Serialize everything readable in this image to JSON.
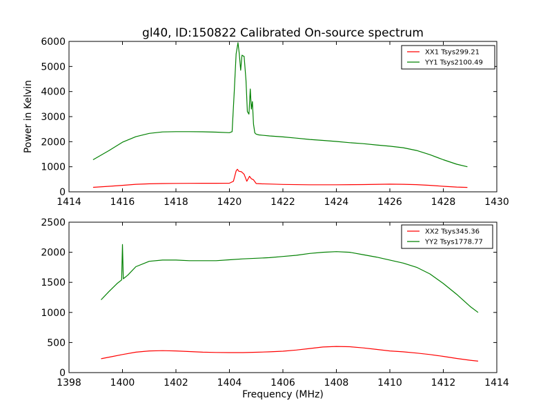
{
  "figure": {
    "title": "gl40, ID:150822 Calibrated On-source spectrum"
  },
  "chart_data": [
    {
      "type": "line",
      "title": "gl40, ID:150822 Calibrated On-source spectrum",
      "xlabel": "",
      "ylabel": "Power in Kelvin",
      "xlim": [
        1414,
        1430
      ],
      "ylim": [
        0,
        6000
      ],
      "xticks": [
        1414,
        1416,
        1418,
        1420,
        1422,
        1424,
        1426,
        1428,
        1430
      ],
      "yticks": [
        0,
        1000,
        2000,
        3000,
        4000,
        5000,
        6000
      ],
      "legend_position": "top-right",
      "grid": false,
      "series": [
        {
          "name": "XX1 Tsys299.21",
          "color": "#ff0000",
          "x": [
            1414.9,
            1415.5,
            1416.0,
            1416.5,
            1417.0,
            1417.5,
            1418.0,
            1418.5,
            1419.0,
            1419.5,
            1420.0,
            1420.15,
            1420.25,
            1420.3,
            1420.35,
            1420.45,
            1420.55,
            1420.65,
            1420.75,
            1420.82,
            1420.9,
            1421.0,
            1421.2,
            1421.5,
            1422.0,
            1423.0,
            1424.0,
            1425.0,
            1426.0,
            1426.5,
            1427.0,
            1427.5,
            1428.0,
            1428.5,
            1428.9
          ],
          "values": [
            180,
            220,
            260,
            300,
            320,
            330,
            335,
            338,
            340,
            340,
            345,
            420,
            830,
            900,
            820,
            800,
            700,
            420,
            620,
            520,
            480,
            330,
            320,
            310,
            295,
            280,
            280,
            290,
            305,
            300,
            285,
            260,
            220,
            190,
            175
          ]
        },
        {
          "name": "YY1 Tsys2100.49",
          "color": "#008000",
          "x": [
            1414.9,
            1415.5,
            1416.0,
            1416.5,
            1417.0,
            1417.5,
            1418.0,
            1418.5,
            1419.0,
            1419.5,
            1420.0,
            1420.1,
            1420.18,
            1420.25,
            1420.32,
            1420.37,
            1420.42,
            1420.47,
            1420.55,
            1420.62,
            1420.67,
            1420.73,
            1420.78,
            1420.82,
            1420.86,
            1420.9,
            1420.95,
            1421.0,
            1421.1,
            1421.5,
            1422.0,
            1422.5,
            1423.0,
            1423.5,
            1424.0,
            1424.5,
            1425.0,
            1425.5,
            1426.0,
            1426.5,
            1427.0,
            1427.5,
            1428.0,
            1428.5,
            1428.9
          ],
          "values": [
            1280,
            1650,
            1980,
            2200,
            2330,
            2390,
            2400,
            2400,
            2395,
            2380,
            2360,
            2400,
            4000,
            5500,
            5950,
            5500,
            4850,
            5450,
            5400,
            4450,
            3200,
            3100,
            4100,
            3300,
            3600,
            2700,
            2350,
            2300,
            2270,
            2230,
            2190,
            2140,
            2090,
            2050,
            2010,
            1960,
            1920,
            1870,
            1820,
            1760,
            1650,
            1480,
            1280,
            1100,
            1000
          ]
        }
      ]
    },
    {
      "type": "line",
      "title": "",
      "xlabel": "Frequency (MHz)",
      "ylabel": "",
      "xlim": [
        1398,
        1414
      ],
      "ylim": [
        0,
        2500
      ],
      "xticks": [
        1398,
        1400,
        1402,
        1404,
        1406,
        1408,
        1410,
        1412,
        1414
      ],
      "yticks": [
        0,
        500,
        1000,
        1500,
        2000,
        2500
      ],
      "legend_position": "top-right",
      "grid": false,
      "series": [
        {
          "name": "XX2 Tsys345.36",
          "color": "#ff0000",
          "x": [
            1399.2,
            1399.6,
            1400.0,
            1400.5,
            1401.0,
            1401.5,
            1402.0,
            1402.5,
            1403.0,
            1403.5,
            1404.0,
            1404.5,
            1405.0,
            1405.5,
            1406.0,
            1406.5,
            1407.0,
            1407.5,
            1408.0,
            1408.5,
            1409.0,
            1409.5,
            1410.0,
            1410.5,
            1411.0,
            1411.5,
            1412.0,
            1412.5,
            1413.0,
            1413.3
          ],
          "values": [
            230,
            265,
            300,
            340,
            360,
            365,
            360,
            350,
            340,
            335,
            332,
            333,
            338,
            345,
            355,
            375,
            400,
            425,
            435,
            430,
            410,
            385,
            360,
            345,
            325,
            300,
            270,
            235,
            205,
            190
          ]
        },
        {
          "name": "YY2 Tsys1778.77",
          "color": "#008000",
          "x": [
            1399.2,
            1399.5,
            1399.8,
            1399.97,
            1400.0,
            1400.03,
            1400.2,
            1400.5,
            1401.0,
            1401.5,
            1402.0,
            1402.5,
            1403.0,
            1403.5,
            1404.0,
            1404.5,
            1405.0,
            1405.5,
            1406.0,
            1406.5,
            1407.0,
            1407.5,
            1408.0,
            1408.5,
            1409.0,
            1409.5,
            1410.0,
            1410.5,
            1411.0,
            1411.5,
            1412.0,
            1412.5,
            1413.0,
            1413.3
          ],
          "values": [
            1210,
            1350,
            1480,
            1540,
            2130,
            1560,
            1620,
            1760,
            1850,
            1870,
            1870,
            1860,
            1860,
            1860,
            1875,
            1890,
            1900,
            1910,
            1930,
            1950,
            1980,
            2000,
            2010,
            2000,
            1960,
            1920,
            1870,
            1820,
            1750,
            1640,
            1480,
            1300,
            1100,
            1000
          ]
        }
      ]
    }
  ]
}
